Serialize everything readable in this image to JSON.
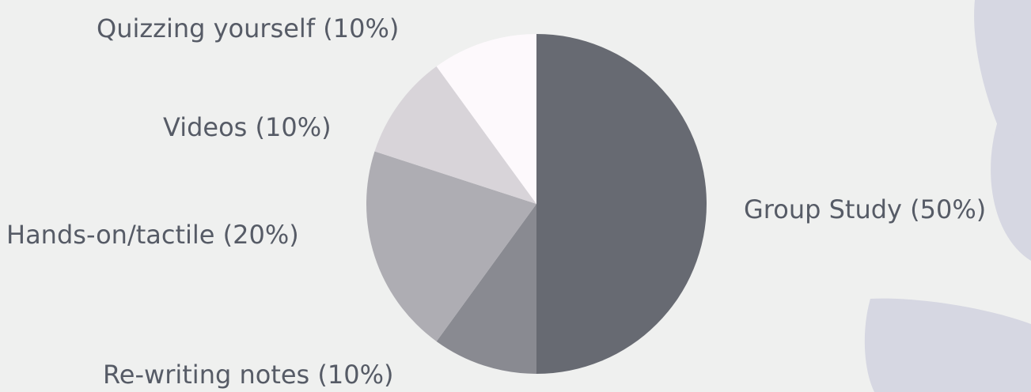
{
  "chart_data": {
    "type": "pie",
    "title": "",
    "slices": [
      {
        "label": "Group Study (50%)",
        "value": 50,
        "color": "#676a72"
      },
      {
        "label": "Re-writing notes (10%)",
        "value": 10,
        "color": "#898a91"
      },
      {
        "label": "Hands-on/tactile (20%)",
        "value": 20,
        "color": "#aeadb3"
      },
      {
        "label": "Videos (10%)",
        "value": 10,
        "color": "#d8d4d9"
      },
      {
        "label": "Quizzing yourself (10%)",
        "value": 10,
        "color": "#fdf9fc"
      }
    ],
    "start_angle": "12 o'clock",
    "direction": "clockwise",
    "legend": "none"
  },
  "decoration": {
    "leaf_color": "#d6d7e2"
  }
}
